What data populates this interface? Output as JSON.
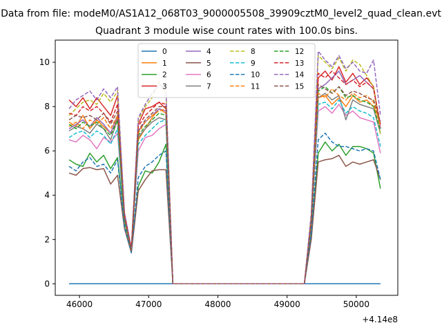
{
  "figure": {
    "suptitle": "Data from file: modeM0/AS1A12_068T03_9000005508_39909cztM0_level2_quad_clean.evt",
    "title": "Quadrant 3 module wise count rates with 100.0s bins."
  },
  "chart_data": {
    "type": "line",
    "title": "Quadrant 3 module wise count rates with 100.0s bins.",
    "xlabel": "",
    "ylabel": "",
    "x_offset_label": "+4.14e8",
    "xlim": [
      45650,
      50600
    ],
    "ylim": [
      -0.52,
      11.0
    ],
    "xticks": [
      46000,
      47000,
      48000,
      49000,
      50000
    ],
    "xtick_labels": [
      "46000",
      "47000",
      "48000",
      "49000",
      "50000"
    ],
    "yticks": [
      0,
      2,
      4,
      6,
      8,
      10
    ],
    "ytick_labels": [
      "0",
      "2",
      "4",
      "6",
      "8",
      "10"
    ],
    "grid": false,
    "legend": {
      "position": "top-center",
      "columns": 4
    },
    "x": [
      45850,
      45950,
      46050,
      46150,
      46250,
      46350,
      46450,
      46550,
      46650,
      46750,
      46850,
      46950,
      47050,
      47150,
      47250,
      47350,
      47450,
      47550,
      47650,
      47750,
      47850,
      47950,
      48050,
      48150,
      48250,
      48350,
      48450,
      48550,
      48650,
      48750,
      48850,
      48950,
      49050,
      49150,
      49250,
      49350,
      49450,
      49550,
      49650,
      49750,
      49850,
      49950,
      50050,
      50150,
      50250,
      50350
    ],
    "series": [
      {
        "name": "0",
        "color": "#1f77b4",
        "dash": "solid",
        "values": [
          0,
          0,
          0,
          0,
          0,
          0,
          0,
          0,
          0,
          0,
          0,
          0,
          0,
          0,
          0,
          0,
          0,
          0,
          0,
          0,
          0,
          0,
          0,
          0,
          0,
          0,
          0,
          0,
          0,
          0,
          0,
          0,
          0,
          0,
          0,
          0,
          0,
          0,
          0,
          0,
          0,
          0,
          0,
          0,
          0,
          0
        ]
      },
      {
        "name": "1",
        "color": "#ff7f0e",
        "dash": "solid",
        "values": [
          7.3,
          7.1,
          7.6,
          7.0,
          7.4,
          7.1,
          6.8,
          7.5,
          3.0,
          1.6,
          6.5,
          7.0,
          7.5,
          7.9,
          7.7,
          0,
          0,
          0,
          0,
          0,
          0,
          0,
          0,
          0,
          0,
          0,
          0,
          0,
          0,
          0,
          0,
          0,
          0,
          0,
          0,
          2.8,
          8.4,
          8.5,
          8.1,
          8.4,
          8.0,
          8.5,
          8.2,
          8.3,
          8.0,
          7.3
        ]
      },
      {
        "name": "2",
        "color": "#2ca02c",
        "dash": "solid",
        "values": [
          5.6,
          5.4,
          5.3,
          5.9,
          5.5,
          5.8,
          5.2,
          5.7,
          2.8,
          1.5,
          4.4,
          5.1,
          5.0,
          5.5,
          6.3,
          0,
          0,
          0,
          0,
          0,
          0,
          0,
          0,
          0,
          0,
          0,
          0,
          0,
          0,
          0,
          0,
          0,
          0,
          0,
          0,
          2.2,
          5.9,
          6.4,
          6.0,
          6.3,
          5.8,
          6.2,
          6.2,
          6.1,
          5.9,
          4.3
        ]
      },
      {
        "name": "3",
        "color": "#d62728",
        "dash": "solid",
        "values": [
          8.3,
          8.0,
          8.4,
          7.9,
          8.4,
          8.0,
          7.6,
          8.5,
          3.2,
          1.6,
          7.2,
          7.9,
          8.0,
          8.2,
          7.9,
          0,
          0,
          0,
          0,
          0,
          0,
          0,
          0,
          0,
          0,
          0,
          0,
          0,
          0,
          0,
          0,
          0,
          0,
          0,
          0,
          3.0,
          9.3,
          9.6,
          9.2,
          9.8,
          9.1,
          9.5,
          9.0,
          9.3,
          8.9,
          7.0
        ]
      },
      {
        "name": "4",
        "color": "#9467bd",
        "dash": "solid",
        "values": [
          7.0,
          7.2,
          7.4,
          7.1,
          7.5,
          7.2,
          6.8,
          7.6,
          3.0,
          1.5,
          6.9,
          7.3,
          7.6,
          7.9,
          7.8,
          0,
          0,
          0,
          0,
          0,
          0,
          0,
          0,
          0,
          0,
          0,
          0,
          0,
          0,
          0,
          0,
          0,
          0,
          0,
          0,
          2.9,
          8.8,
          9.0,
          9.3,
          9.6,
          9.0,
          9.2,
          9.4,
          9.1,
          8.8,
          7.0
        ]
      },
      {
        "name": "5",
        "color": "#8c564b",
        "dash": "solid",
        "values": [
          5.0,
          4.9,
          5.2,
          5.25,
          5.15,
          5.2,
          4.5,
          4.9,
          2.5,
          1.4,
          4.2,
          4.7,
          5.1,
          5.15,
          5.15,
          0,
          0,
          0,
          0,
          0,
          0,
          0,
          0,
          0,
          0,
          0,
          0,
          0,
          0,
          0,
          0,
          0,
          0,
          0,
          0,
          2.0,
          5.5,
          5.6,
          5.65,
          5.8,
          5.3,
          5.5,
          5.4,
          5.5,
          5.6,
          4.7
        ]
      },
      {
        "name": "6",
        "color": "#e377c2",
        "dash": "solid",
        "values": [
          6.5,
          6.4,
          6.7,
          6.5,
          6.1,
          6.6,
          6.4,
          6.8,
          2.9,
          1.6,
          6.0,
          6.6,
          6.7,
          7.0,
          7.2,
          0,
          0,
          0,
          0,
          0,
          0,
          0,
          0,
          0,
          0,
          0,
          0,
          0,
          0,
          0,
          0,
          0,
          0,
          0,
          0,
          2.6,
          7.8,
          8.0,
          7.7,
          8.1,
          7.6,
          7.8,
          7.5,
          7.4,
          7.3,
          5.9
        ]
      },
      {
        "name": "7",
        "color": "#7f7f7f",
        "dash": "solid",
        "values": [
          6.9,
          7.1,
          7.0,
          6.8,
          7.2,
          7.0,
          6.5,
          7.4,
          2.9,
          1.5,
          6.6,
          7.0,
          7.3,
          7.5,
          7.4,
          0,
          0,
          0,
          0,
          0,
          0,
          0,
          0,
          0,
          0,
          0,
          0,
          0,
          0,
          0,
          0,
          0,
          0,
          0,
          0,
          2.7,
          8.4,
          8.6,
          8.3,
          8.5,
          7.4,
          8.3,
          8.1,
          8.0,
          7.9,
          6.8
        ]
      },
      {
        "name": "8",
        "color": "#bcbd22",
        "dash": "dashed",
        "values": [
          7.6,
          7.9,
          8.2,
          8.3,
          8.1,
          8.6,
          8.2,
          8.7,
          3.1,
          1.5,
          7.4,
          8.0,
          8.4,
          9.1,
          8.6,
          0,
          0,
          0,
          0,
          0,
          0,
          0,
          0,
          0,
          0,
          0,
          0,
          0,
          0,
          0,
          0,
          0,
          0,
          0,
          0,
          3.1,
          10.3,
          10.0,
          9.7,
          10.2,
          9.6,
          10.1,
          9.9,
          9.4,
          8.9,
          6.7
        ]
      },
      {
        "name": "9",
        "color": "#17becf",
        "dash": "dashed",
        "values": [
          6.6,
          6.8,
          6.9,
          6.6,
          6.9,
          6.7,
          6.3,
          7.0,
          2.8,
          1.6,
          6.3,
          6.7,
          7.0,
          7.3,
          7.4,
          0,
          0,
          0,
          0,
          0,
          0,
          0,
          0,
          0,
          0,
          0,
          0,
          0,
          0,
          0,
          0,
          0,
          0,
          0,
          0,
          2.6,
          8.1,
          8.2,
          7.9,
          8.3,
          7.7,
          8.0,
          7.8,
          7.7,
          7.5,
          6.2
        ]
      },
      {
        "name": "10",
        "color": "#1f77b4",
        "dash": "dashed",
        "values": [
          5.3,
          5.1,
          5.5,
          5.7,
          5.3,
          5.4,
          5.0,
          5.6,
          2.6,
          1.4,
          4.8,
          5.3,
          5.5,
          5.8,
          6.0,
          0,
          0,
          0,
          0,
          0,
          0,
          0,
          0,
          0,
          0,
          0,
          0,
          0,
          0,
          0,
          0,
          0,
          0,
          0,
          0,
          2.3,
          6.5,
          6.8,
          6.4,
          6.2,
          6.2,
          6.1,
          6.0,
          6.1,
          6.0,
          4.7
        ]
      },
      {
        "name": "11",
        "color": "#ff7f0e",
        "dash": "dashed",
        "values": [
          7.1,
          7.3,
          7.0,
          7.4,
          7.2,
          7.5,
          7.0,
          7.6,
          2.9,
          1.5,
          6.8,
          7.3,
          7.6,
          7.8,
          7.9,
          0,
          0,
          0,
          0,
          0,
          0,
          0,
          0,
          0,
          0,
          0,
          0,
          0,
          0,
          0,
          0,
          0,
          0,
          0,
          0,
          2.8,
          8.6,
          8.4,
          8.8,
          8.5,
          8.3,
          8.6,
          8.4,
          8.5,
          8.2,
          7.1
        ]
      },
      {
        "name": "12",
        "color": "#2ca02c",
        "dash": "dashed",
        "values": [
          7.2,
          7.0,
          7.3,
          7.1,
          7.3,
          7.0,
          6.7,
          7.4,
          2.9,
          1.5,
          6.7,
          7.1,
          7.4,
          7.7,
          7.6,
          0,
          0,
          0,
          0,
          0,
          0,
          0,
          0,
          0,
          0,
          0,
          0,
          0,
          0,
          0,
          0,
          0,
          0,
          0,
          0,
          2.8,
          8.7,
          8.9,
          8.6,
          8.9,
          8.4,
          8.5,
          8.3,
          8.2,
          8.0,
          6.9
        ]
      },
      {
        "name": "13",
        "color": "#d62728",
        "dash": "dashed",
        "values": [
          7.7,
          7.6,
          8.0,
          7.8,
          8.0,
          7.7,
          7.3,
          8.1,
          3.1,
          1.6,
          7.1,
          7.6,
          7.9,
          8.2,
          8.1,
          0,
          0,
          0,
          0,
          0,
          0,
          0,
          0,
          0,
          0,
          0,
          0,
          0,
          0,
          0,
          0,
          0,
          0,
          0,
          0,
          2.9,
          9.5,
          9.3,
          9.6,
          9.3,
          9.0,
          9.2,
          8.9,
          9.1,
          8.8,
          7.2
        ]
      },
      {
        "name": "14",
        "color": "#9467bd",
        "dash": "dashed",
        "values": [
          7.9,
          8.3,
          8.5,
          8.7,
          8.3,
          8.8,
          8.4,
          8.9,
          3.2,
          1.6,
          7.5,
          8.1,
          8.6,
          9.0,
          8.8,
          0,
          0,
          0,
          0,
          0,
          0,
          0,
          0,
          0,
          0,
          0,
          0,
          0,
          0,
          0,
          0,
          0,
          0,
          0,
          0,
          3.2,
          10.5,
          10.1,
          9.8,
          10.3,
          9.7,
          10.0,
          9.6,
          9.5,
          10.1,
          7.6
        ]
      },
      {
        "name": "15",
        "color": "#8c564b",
        "dash": "dashed",
        "values": [
          7.4,
          7.6,
          7.5,
          7.6,
          7.4,
          7.7,
          7.2,
          7.8,
          3.0,
          1.5,
          6.9,
          7.4,
          7.7,
          8.0,
          8.0,
          0,
          0,
          0,
          0,
          0,
          0,
          0,
          0,
          0,
          0,
          0,
          0,
          0,
          0,
          0,
          0,
          0,
          0,
          0,
          0,
          2.8,
          9.0,
          8.8,
          8.6,
          8.9,
          8.5,
          8.7,
          8.6,
          8.4,
          8.3,
          7.3
        ]
      }
    ]
  }
}
